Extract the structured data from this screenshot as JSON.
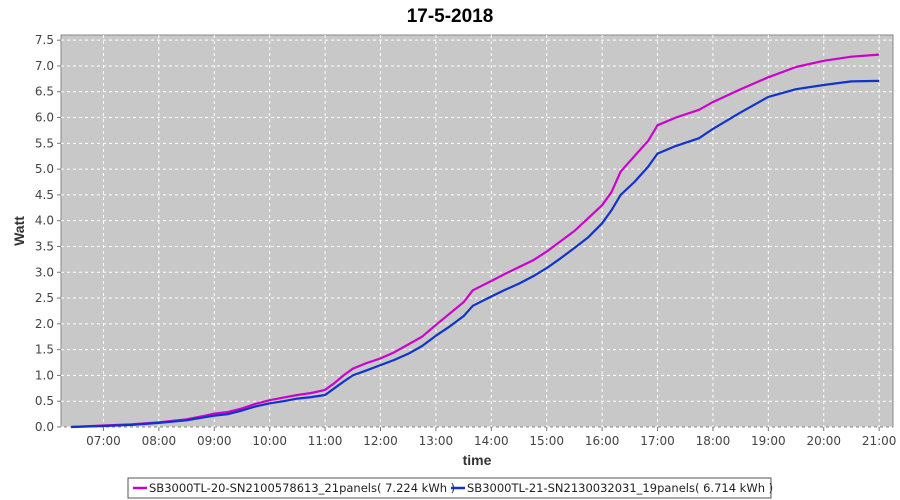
{
  "chart_data": {
    "type": "line",
    "title": "17-5-2018",
    "xlabel": "time",
    "ylabel": "Watt",
    "x_ticks": [
      "07:00",
      "08:00",
      "09:00",
      "10:00",
      "11:00",
      "12:00",
      "13:00",
      "14:00",
      "15:00",
      "16:00",
      "17:00",
      "18:00",
      "19:00",
      "20:00",
      "21:00"
    ],
    "y_ticks": [
      "0.0",
      "0.5",
      "1.0",
      "1.5",
      "2.0",
      "2.5",
      "3.0",
      "3.5",
      "4.0",
      "4.5",
      "5.0",
      "5.5",
      "6.0",
      "6.5",
      "7.0",
      "7.5"
    ],
    "xlim": [
      "06:14",
      "21:15"
    ],
    "ylim": [
      0,
      7.6
    ],
    "grid": true,
    "legend_position": "bottom",
    "series": [
      {
        "name": "SB3000TL-20-SN2100578613_21panels( 7.224 kWh )",
        "color": "#cc00cc",
        "points": [
          [
            "06:25",
            0.0
          ],
          [
            "07:00",
            0.03
          ],
          [
            "07:30",
            0.05
          ],
          [
            "08:00",
            0.09
          ],
          [
            "08:30",
            0.15
          ],
          [
            "08:50",
            0.22
          ],
          [
            "09:00",
            0.26
          ],
          [
            "09:15",
            0.29
          ],
          [
            "09:30",
            0.36
          ],
          [
            "09:45",
            0.45
          ],
          [
            "10:00",
            0.52
          ],
          [
            "10:15",
            0.57
          ],
          [
            "10:30",
            0.62
          ],
          [
            "10:45",
            0.66
          ],
          [
            "11:00",
            0.72
          ],
          [
            "11:10",
            0.85
          ],
          [
            "11:20",
            1.0
          ],
          [
            "11:30",
            1.13
          ],
          [
            "11:45",
            1.24
          ],
          [
            "12:00",
            1.33
          ],
          [
            "12:15",
            1.45
          ],
          [
            "12:30",
            1.6
          ],
          [
            "12:45",
            1.75
          ],
          [
            "13:00",
            1.98
          ],
          [
            "13:15",
            2.2
          ],
          [
            "13:30",
            2.42
          ],
          [
            "13:40",
            2.65
          ],
          [
            "14:00",
            2.83
          ],
          [
            "14:15",
            2.97
          ],
          [
            "14:30",
            3.1
          ],
          [
            "14:45",
            3.23
          ],
          [
            "15:00",
            3.4
          ],
          [
            "15:15",
            3.6
          ],
          [
            "15:30",
            3.8
          ],
          [
            "15:45",
            4.05
          ],
          [
            "16:00",
            4.3
          ],
          [
            "16:10",
            4.55
          ],
          [
            "16:20",
            4.95
          ],
          [
            "16:35",
            5.25
          ],
          [
            "16:50",
            5.55
          ],
          [
            "17:00",
            5.85
          ],
          [
            "17:20",
            6.0
          ],
          [
            "17:45",
            6.15
          ],
          [
            "18:00",
            6.3
          ],
          [
            "18:30",
            6.55
          ],
          [
            "19:00",
            6.78
          ],
          [
            "19:30",
            6.98
          ],
          [
            "20:00",
            7.1
          ],
          [
            "20:30",
            7.18
          ],
          [
            "21:00",
            7.22
          ]
        ]
      },
      {
        "name": "SB3000TL-21-SN2130032031_19panels( 6.714 kWh )",
        "color": "#1133cc",
        "points": [
          [
            "06:25",
            0.0
          ],
          [
            "07:00",
            0.02
          ],
          [
            "07:30",
            0.04
          ],
          [
            "08:00",
            0.08
          ],
          [
            "08:30",
            0.13
          ],
          [
            "08:50",
            0.19
          ],
          [
            "09:00",
            0.22
          ],
          [
            "09:15",
            0.25
          ],
          [
            "09:30",
            0.32
          ],
          [
            "09:45",
            0.4
          ],
          [
            "10:00",
            0.46
          ],
          [
            "10:15",
            0.5
          ],
          [
            "10:30",
            0.55
          ],
          [
            "10:45",
            0.58
          ],
          [
            "11:00",
            0.62
          ],
          [
            "11:10",
            0.75
          ],
          [
            "11:20",
            0.88
          ],
          [
            "11:30",
            1.0
          ],
          [
            "11:45",
            1.1
          ],
          [
            "12:00",
            1.2
          ],
          [
            "12:15",
            1.3
          ],
          [
            "12:30",
            1.42
          ],
          [
            "12:45",
            1.57
          ],
          [
            "13:00",
            1.77
          ],
          [
            "13:15",
            1.95
          ],
          [
            "13:30",
            2.15
          ],
          [
            "13:40",
            2.35
          ],
          [
            "14:00",
            2.53
          ],
          [
            "14:15",
            2.66
          ],
          [
            "14:30",
            2.78
          ],
          [
            "14:45",
            2.92
          ],
          [
            "15:00",
            3.08
          ],
          [
            "15:15",
            3.27
          ],
          [
            "15:30",
            3.47
          ],
          [
            "15:45",
            3.68
          ],
          [
            "16:00",
            3.95
          ],
          [
            "16:10",
            4.2
          ],
          [
            "16:20",
            4.5
          ],
          [
            "16:35",
            4.75
          ],
          [
            "16:50",
            5.05
          ],
          [
            "17:00",
            5.3
          ],
          [
            "17:20",
            5.45
          ],
          [
            "17:45",
            5.6
          ],
          [
            "18:00",
            5.78
          ],
          [
            "18:30",
            6.1
          ],
          [
            "19:00",
            6.4
          ],
          [
            "19:30",
            6.55
          ],
          [
            "20:00",
            6.63
          ],
          [
            "20:30",
            6.7
          ],
          [
            "21:00",
            6.71
          ]
        ]
      }
    ]
  }
}
